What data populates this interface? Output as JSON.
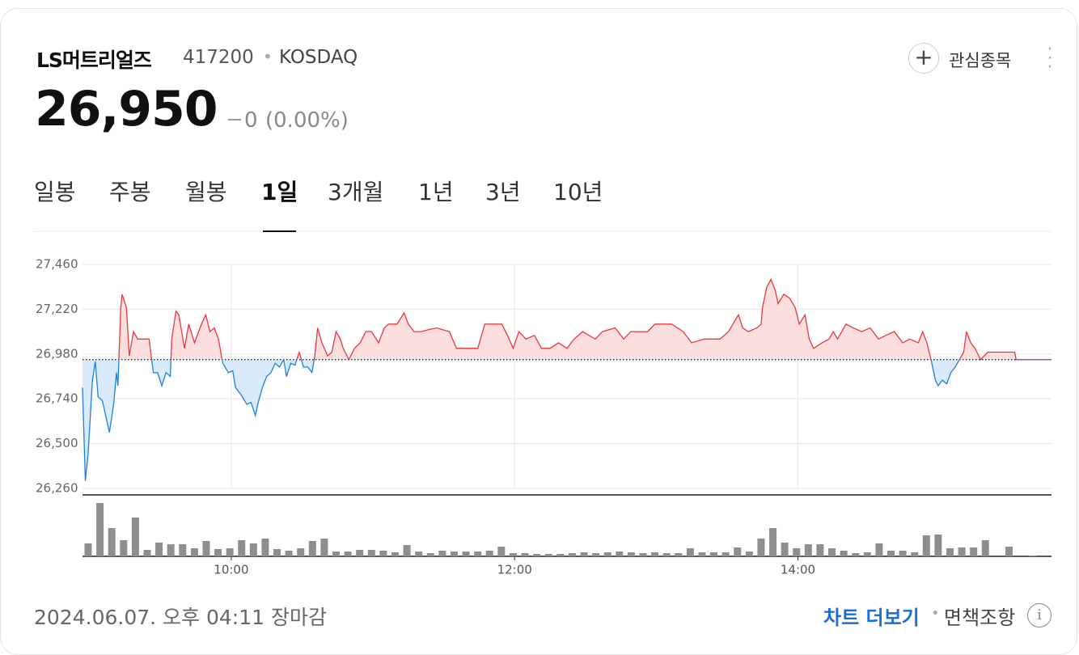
{
  "header": {
    "name": "LS머트리얼즈",
    "code": "417200",
    "market": "KOSDAQ",
    "price": "26,950",
    "change": "0",
    "change_rate": "(0.00%)",
    "watch_button": "관심종목"
  },
  "tabs": {
    "items": [
      "일봉",
      "주봉",
      "월봉",
      "1일",
      "3개월",
      "1년",
      "3년",
      "10년"
    ],
    "active": 3
  },
  "chart_data": [
    {
      "type": "line",
      "x": [
        8.95,
        8.97,
        8.99,
        9.02,
        9.04,
        9.06,
        9.09,
        9.14,
        9.17,
        9.19,
        9.2,
        9.22,
        9.23,
        9.26,
        9.28,
        9.31,
        9.34,
        9.37,
        9.42,
        9.45,
        9.48,
        9.51,
        9.54,
        9.57,
        9.58,
        9.61,
        9.63,
        9.67,
        9.7,
        9.74,
        9.77,
        9.79,
        9.82,
        9.85,
        9.88,
        9.91,
        9.94,
        9.98,
        10.01,
        10.03,
        10.07,
        10.11,
        10.14,
        10.17,
        10.19,
        10.22,
        10.25,
        10.28,
        10.31,
        10.34,
        10.37,
        10.39,
        10.42,
        10.45,
        10.48,
        10.51,
        10.54,
        10.57,
        10.59,
        10.61,
        10.64,
        10.68,
        10.71,
        10.74,
        10.77,
        10.79,
        10.83,
        10.87,
        10.91,
        10.95,
        10.99,
        11.04,
        11.08,
        11.11,
        11.17,
        11.22,
        11.25,
        11.29,
        11.34,
        11.39,
        11.45,
        11.54,
        11.59,
        11.68,
        11.74,
        11.79,
        11.91,
        11.95,
        11.99,
        12.03,
        12.08,
        12.14,
        12.19,
        12.25,
        12.31,
        12.37,
        12.42,
        12.48,
        12.57,
        12.62,
        12.71,
        12.77,
        12.82,
        12.94,
        12.99,
        13.11,
        13.19,
        13.25,
        13.34,
        13.39,
        13.45,
        13.51,
        13.58,
        13.61,
        13.65,
        13.71,
        13.74,
        13.75,
        13.78,
        13.81,
        13.84,
        13.86,
        13.9,
        13.94,
        13.98,
        14.01,
        14.05,
        14.08,
        14.11,
        14.17,
        14.22,
        14.25,
        14.28,
        14.34,
        14.39,
        14.45,
        14.51,
        14.57,
        14.62,
        14.68,
        14.74,
        14.79,
        14.85,
        14.88,
        14.91,
        14.94,
        14.97,
        14.99,
        15.02,
        15.05,
        15.08,
        15.11,
        15.14,
        15.17,
        15.19,
        15.22,
        15.25,
        15.29,
        15.34,
        15.45,
        15.53,
        15.54,
        15.79
      ],
      "values": [
        26800,
        26300,
        26450,
        26840,
        26940,
        26750,
        26730,
        26560,
        26710,
        26880,
        26810,
        27230,
        27300,
        27230,
        26970,
        27100,
        27060,
        27060,
        27060,
        26880,
        26880,
        26810,
        26880,
        26860,
        27060,
        27210,
        27190,
        27010,
        27140,
        27040,
        27100,
        27140,
        27190,
        27100,
        27120,
        27060,
        26930,
        26880,
        26890,
        26800,
        26760,
        26710,
        26720,
        26650,
        26720,
        26800,
        26860,
        26880,
        26930,
        26910,
        26950,
        26860,
        26930,
        26920,
        26990,
        26910,
        26910,
        26880,
        26970,
        27120,
        27040,
        26970,
        26990,
        27100,
        27060,
        27010,
        26950,
        27010,
        27040,
        27100,
        27100,
        27040,
        27120,
        27140,
        27140,
        27200,
        27140,
        27100,
        27100,
        27110,
        27120,
        27100,
        27010,
        27010,
        27010,
        27140,
        27140,
        27080,
        27010,
        27100,
        27060,
        27080,
        27010,
        27010,
        27040,
        27010,
        27060,
        27100,
        27060,
        27100,
        27120,
        27060,
        27100,
        27100,
        27140,
        27140,
        27100,
        27040,
        27060,
        27060,
        27060,
        27100,
        27190,
        27120,
        27100,
        27120,
        27140,
        27230,
        27340,
        27380,
        27320,
        27250,
        27300,
        27280,
        27230,
        27140,
        27190,
        27060,
        27010,
        27040,
        27060,
        27100,
        27060,
        27140,
        27120,
        27100,
        27120,
        27060,
        27080,
        27100,
        27040,
        27060,
        27040,
        27100,
        27040,
        26950,
        26840,
        26810,
        26840,
        26820,
        26880,
        26910,
        26950,
        26990,
        27100,
        27040,
        27010,
        26950,
        26990,
        26990,
        26990,
        26950,
        26950
      ],
      "reference_line": 26950,
      "up_color": "#e8383d",
      "down_color": "#1d7fe0",
      "up_fill": "#fbdede",
      "down_fill": "#d9eafb",
      "xlim": [
        8.95,
        15.79
      ],
      "ylim": [
        26225,
        27577
      ],
      "xticks": [
        {
          "value": 10,
          "label": "10:00"
        },
        {
          "value": 12,
          "label": "12:00"
        },
        {
          "value": 14,
          "label": "14:00"
        }
      ],
      "yticks": [
        {
          "value": 26260,
          "label": "26,260"
        },
        {
          "value": 26500,
          "label": "26,500"
        },
        {
          "value": 26740,
          "label": "26,740"
        },
        {
          "value": 26980,
          "label": "26,980"
        },
        {
          "value": 27220,
          "label": "27,220"
        },
        {
          "value": 27460,
          "label": "27,460"
        }
      ],
      "grid": true
    },
    {
      "type": "bar",
      "color": "#8e8e8e",
      "ylim": [
        0,
        68
      ],
      "values": [
        16,
        66,
        35,
        20,
        48,
        8,
        17,
        15,
        15,
        10,
        19,
        9,
        10,
        20,
        16,
        22,
        9,
        7,
        10,
        19,
        22,
        6,
        6,
        8,
        8,
        7,
        5,
        14,
        6,
        4,
        7,
        6,
        6,
        6,
        7,
        12,
        4,
        4,
        3,
        3,
        3,
        4,
        5,
        4,
        5,
        6,
        5,
        4,
        5,
        4,
        4,
        10,
        5,
        5,
        5,
        11,
        6,
        22,
        35,
        17,
        10,
        15,
        15,
        10,
        7,
        4,
        5,
        16,
        7,
        7,
        5,
        26,
        27,
        10,
        11,
        11,
        20,
        0,
        12,
        0,
        1
      ]
    }
  ],
  "footer": {
    "timestamp": "2024.06.07. 오후 04:11 장마감",
    "more_chart": "차트 더보기",
    "disclaimer": "면책조항"
  }
}
